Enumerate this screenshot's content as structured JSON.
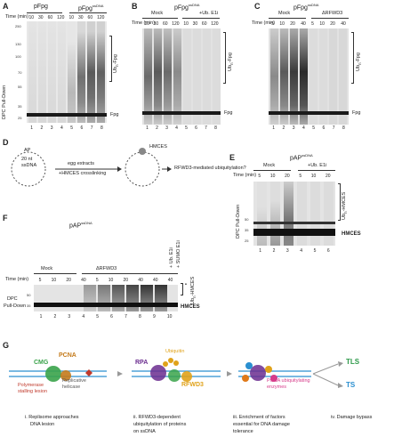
{
  "panels": {
    "A": {
      "letter": "A",
      "title_left": "pFpg",
      "title_right": "pFpg",
      "title_right_sup": "ssDNA",
      "time_label": "Time (min)",
      "times": [
        "10",
        "30",
        "60",
        "120",
        "10",
        "30",
        "60",
        "120"
      ],
      "lanes": [
        "1",
        "2",
        "3",
        "4",
        "5",
        "6",
        "7",
        "8"
      ],
      "ylabel": "DPC Pull-Down",
      "ub_label": "Ub",
      "ub_sub": "n",
      "ub_rest": "-Fpg",
      "band_label": "Fpg",
      "mw": [
        "250",
        "130",
        "100",
        "70",
        "55",
        "35",
        "25"
      ]
    },
    "B": {
      "letter": "B",
      "title": "pFpg",
      "title_sup": "ssDNA",
      "group1": "Mock",
      "group2": "+Ub. E1i",
      "time_label": "Time (min)",
      "times": [
        "10",
        "30",
        "60",
        "120",
        "10",
        "30",
        "60",
        "120"
      ],
      "lanes": [
        "1",
        "2",
        "3",
        "4",
        "5",
        "6",
        "7",
        "8"
      ],
      "ub_label": "Ub",
      "ub_sub": "n",
      "ub_rest": "-Fpg",
      "band_label": "Fpg"
    },
    "C": {
      "letter": "C",
      "title": "pFpg",
      "title_sup": "ssDNA",
      "group1": "Mock",
      "group2": "ΔRFWD3",
      "time_label": "Time (min)",
      "times": [
        "5",
        "10",
        "20",
        "40",
        "5",
        "10",
        "20",
        "40"
      ],
      "lanes": [
        "1",
        "2",
        "3",
        "4",
        "5",
        "6",
        "7",
        "8"
      ],
      "ub_label": "Ub",
      "ub_sub": "n",
      "ub_rest": "-Fpg",
      "band_label": "Fpg"
    },
    "D": {
      "letter": "D",
      "circle_a": "AP",
      "circle_b": "20 nt",
      "circle_c": "ssDNA",
      "step1": "egg extracts",
      "step2": "+HMCES crosslinking",
      "hmces": "HMCES",
      "question": "RFWD3-mediated ubiquitylation?"
    },
    "E": {
      "letter": "E",
      "title": "pAP",
      "title_sup": "ssDNA",
      "group1": "Mock",
      "group2": "+Ub. E1i",
      "time_label": "Time (min)",
      "times": [
        "5",
        "10",
        "20",
        "5",
        "10",
        "20"
      ],
      "lanes": [
        "1",
        "2",
        "3",
        "4",
        "5",
        "6"
      ],
      "ylabel": "DPC Pull-Down",
      "ub_label": "Ub",
      "ub_sub": "n",
      "ub_rest": "-HMCES",
      "band_label": "HMCES",
      "mw": [
        "50",
        "35",
        "25"
      ]
    },
    "F": {
      "letter": "F",
      "title": "pAP",
      "title_sup": "ssDNA",
      "group1": "Mock",
      "group2": "ΔRFWD3",
      "extra1": "+ Ub. E1i",
      "extra2": "+ SUMO E1i",
      "time_label": "Time (min)",
      "times": [
        "5",
        "10",
        "20",
        "40",
        "5",
        "10",
        "20",
        "40",
        "40",
        "40"
      ],
      "lanes": [
        "1",
        "2",
        "3",
        "4",
        "5",
        "6",
        "7",
        "8",
        "9",
        "10"
      ],
      "ylabel1": "DPC",
      "ylabel2": "Pull-Down",
      "ub_label": "Ub",
      "ub_sub": "n",
      "ub_rest": "-HMCES",
      "band_label": "HMCES",
      "mw": [
        "50",
        "35"
      ]
    },
    "G": {
      "letter": "G",
      "cmg": "CMG",
      "pcna": "PCNA",
      "polymerase": "Polymerase",
      "stalling": "stalling lesion",
      "helicase_a": "Replicative",
      "helicase_b": "helicase",
      "rpa": "RPA",
      "ubiquitin": "Ubiquitin",
      "rfwd3": "RFWD3",
      "pcna_enzymes_a": "PCNA ubiquitylating",
      "pcna_enzymes_b": "enzymes",
      "tls": "TLS",
      "ts": "TS",
      "step1_a": "i. Replisome approaches",
      "step1_b": "DNA lesion",
      "step2_a": "ii. RFWD3-dependent",
      "step2_b": "ubiquitylation of proteins",
      "step2_c": "on ssDNA",
      "step3_a": "iii. Enrichment of factors",
      "step3_b": "essential for DNA damage",
      "step3_c": "tolerance",
      "step4": "iv. Damage bypass"
    }
  },
  "colors": {
    "cmg": "#3aa34a",
    "pcna": "#c47a1a",
    "rpa": "#6b2d8f",
    "ubiquitin": "#e0a21a",
    "rfwd3": "#e0a21a",
    "tls": "#2e9a4a",
    "ts": "#2a8fd0",
    "polymerase": "#c0392b"
  }
}
